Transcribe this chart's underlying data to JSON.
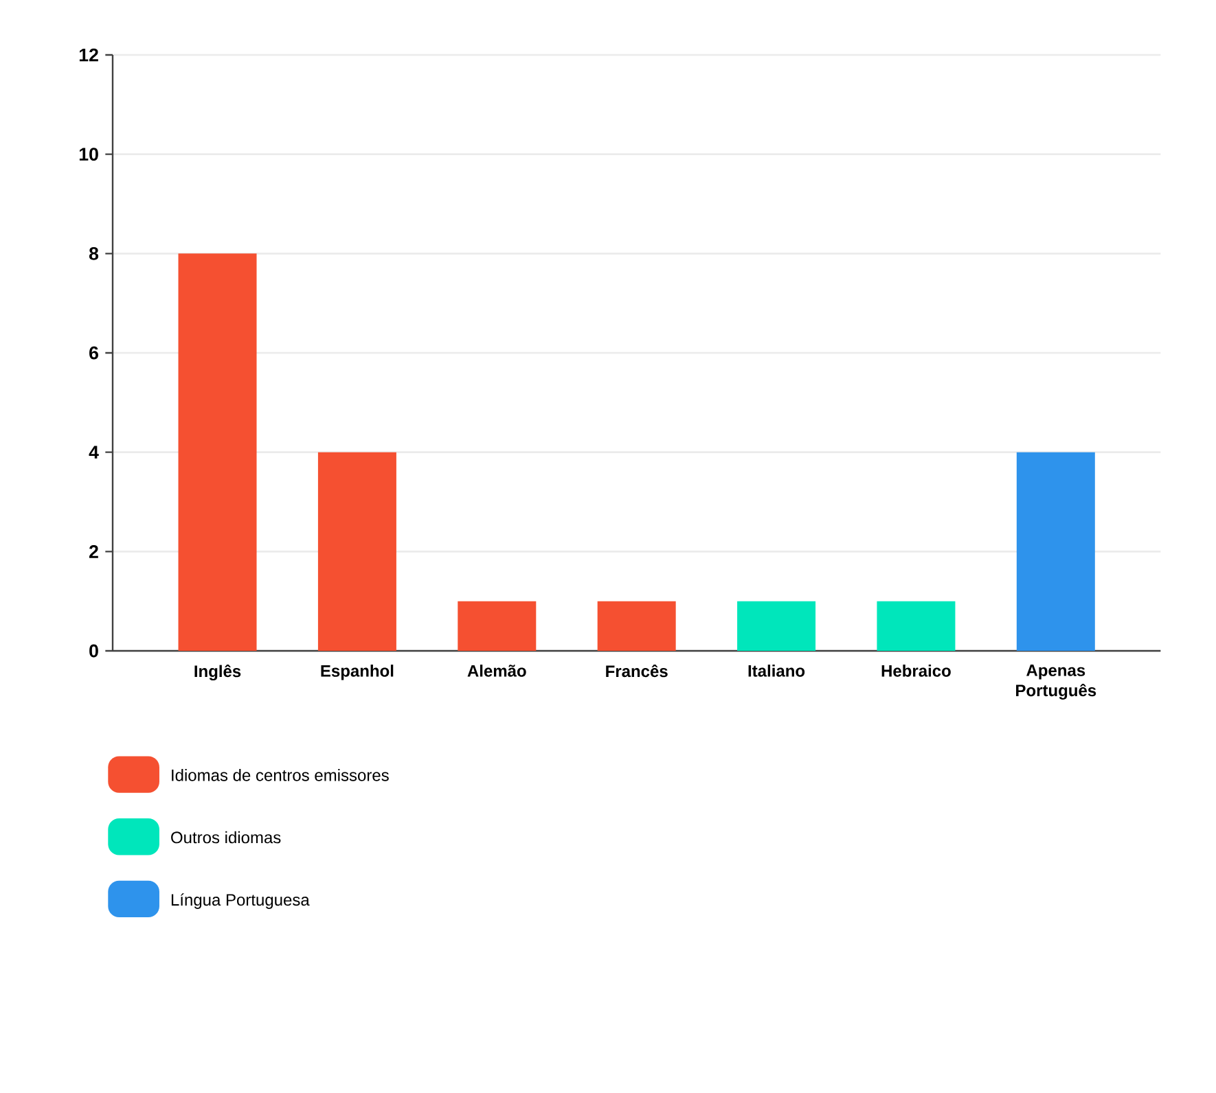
{
  "chart_data": {
    "type": "bar",
    "categories": [
      "Inglês",
      "Espanhol",
      "Alemão",
      "Francês",
      "Italiano",
      "Hebraico",
      "Apenas Português"
    ],
    "series": [
      {
        "name": "Idiomas de centros emissores",
        "color": "#f55031",
        "values": [
          8,
          4,
          1,
          1,
          null,
          null,
          null
        ]
      },
      {
        "name": "Outros idiomas",
        "color": "#00e6bb",
        "values": [
          null,
          null,
          null,
          null,
          1,
          1,
          null
        ]
      },
      {
        "name": "Língua Portuguesa",
        "color": "#2e93ec",
        "values": [
          null,
          null,
          null,
          null,
          null,
          null,
          4
        ]
      }
    ],
    "ylim": [
      0,
      12
    ],
    "yticks": [
      0,
      2,
      4,
      6,
      8,
      10,
      12
    ],
    "grid": "y",
    "legend": "bottom left"
  }
}
